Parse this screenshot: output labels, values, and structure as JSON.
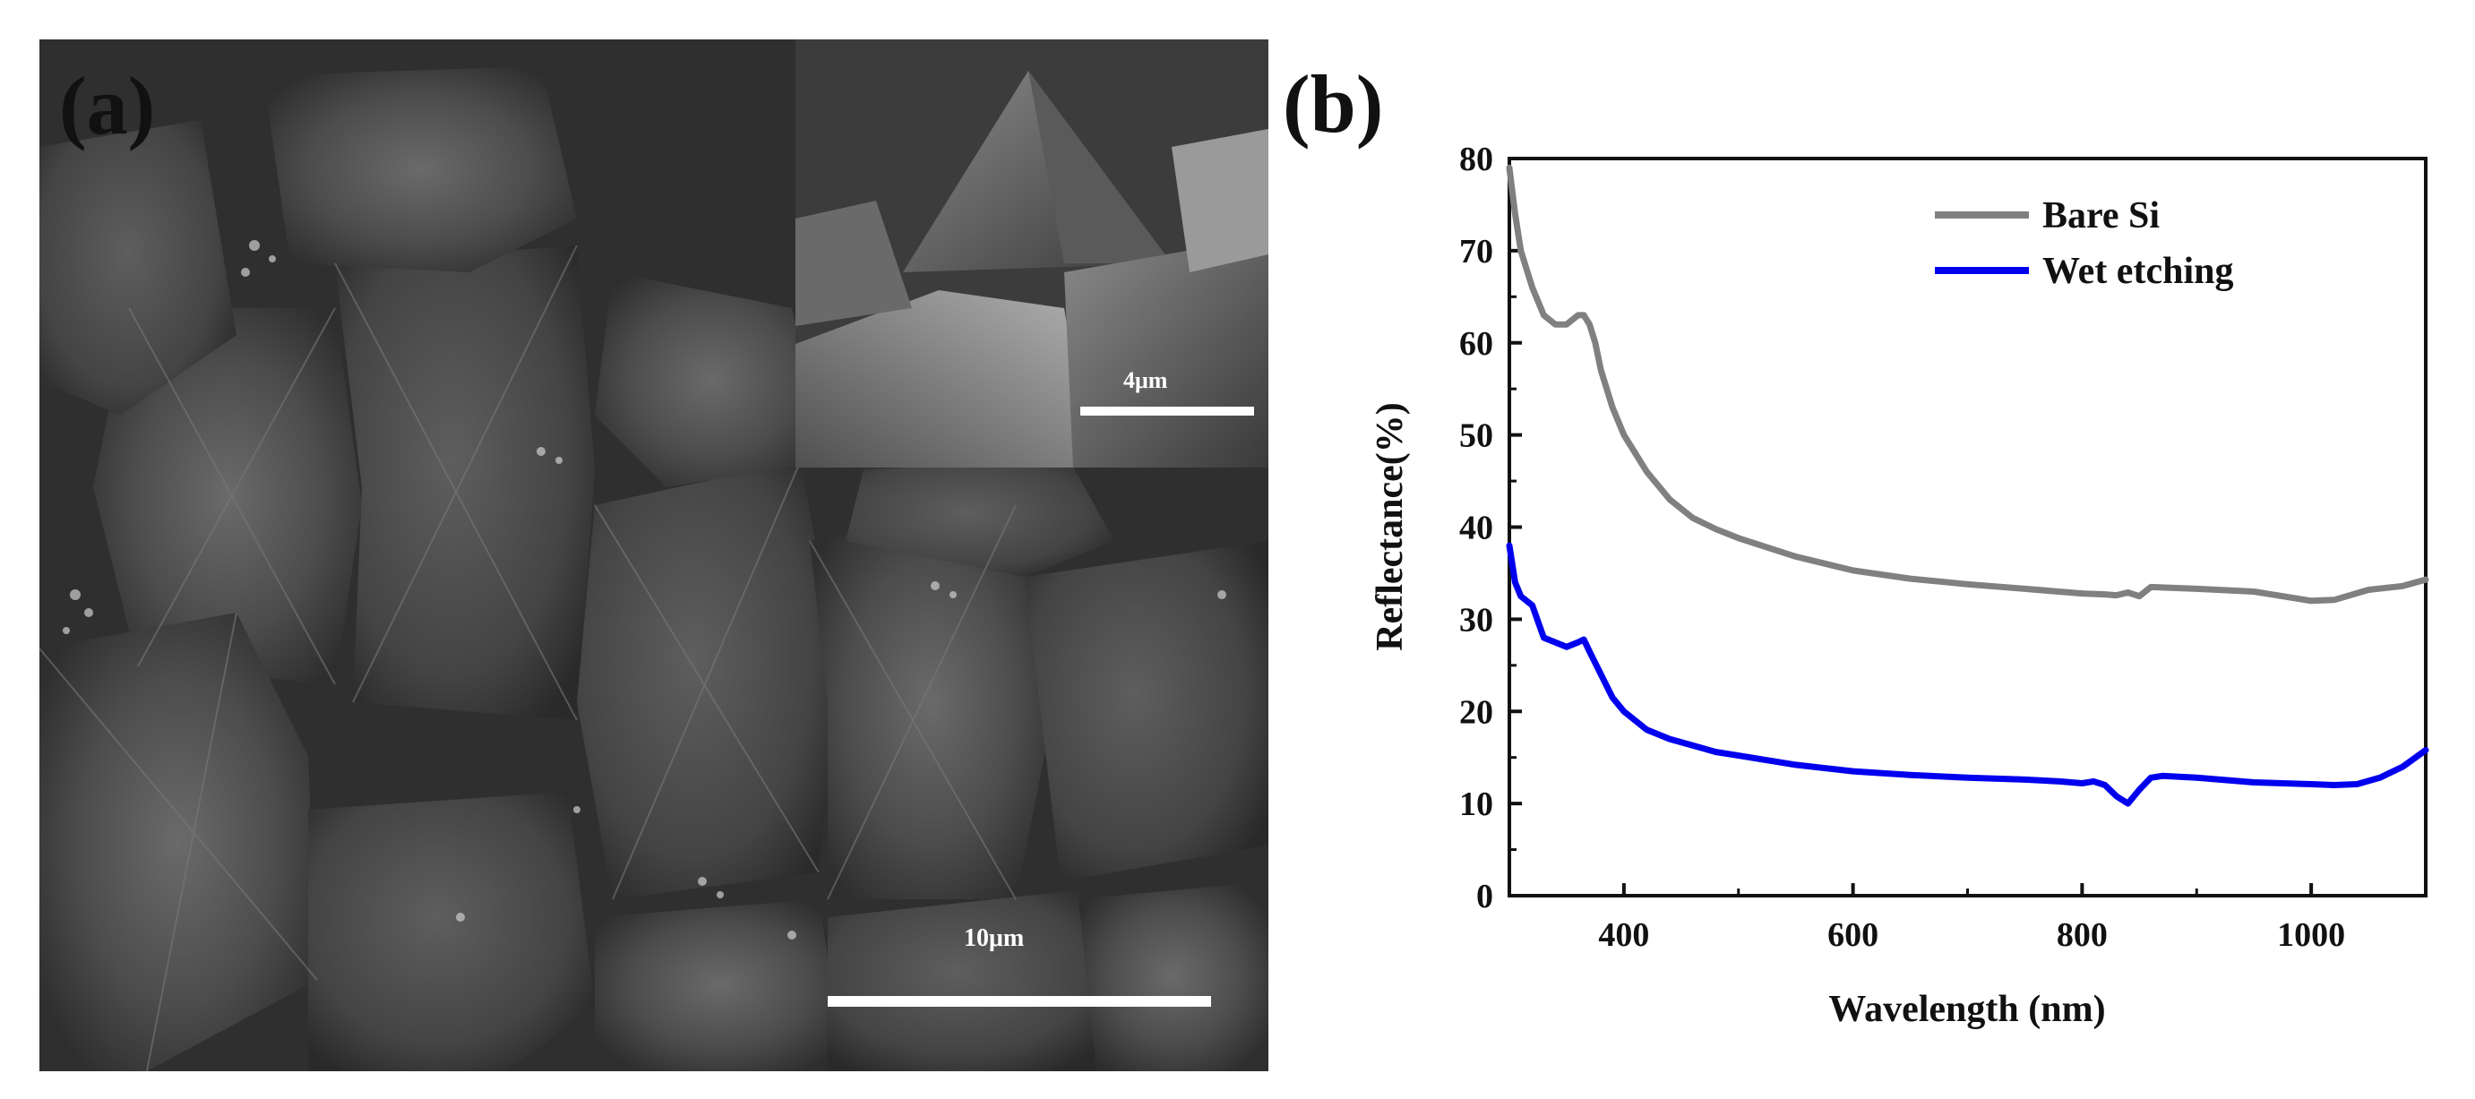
{
  "panel_a": {
    "label": "(a)",
    "main_scale_label": "10μm",
    "inset_scale_label": "4μm"
  },
  "panel_b": {
    "label": "(b)"
  },
  "chart_data": {
    "type": "line",
    "xlabel": "Wavelength (nm)",
    "ylabel": "Reflectance(%)",
    "xlim": [
      300,
      1100
    ],
    "ylim": [
      0,
      80
    ],
    "x_ticks": [
      400,
      600,
      800,
      1000
    ],
    "y_ticks": [
      0,
      10,
      20,
      30,
      40,
      50,
      60,
      70,
      80
    ],
    "grid": false,
    "legend_position": "top-right",
    "series": [
      {
        "name": "Bare Si",
        "color": "#808080",
        "x": [
          300,
          305,
          310,
          320,
          330,
          340,
          350,
          355,
          360,
          365,
          370,
          375,
          380,
          390,
          400,
          420,
          440,
          460,
          480,
          500,
          550,
          600,
          650,
          700,
          750,
          800,
          820,
          830,
          840,
          850,
          860,
          900,
          950,
          1000,
          1020,
          1050,
          1080,
          1100
        ],
        "y": [
          79,
          74,
          70,
          66,
          63,
          62,
          62,
          62.5,
          63,
          63,
          62,
          60,
          57,
          53,
          50,
          46,
          43,
          41,
          39.8,
          38.8,
          36.8,
          35.3,
          34.4,
          33.8,
          33.3,
          32.8,
          32.7,
          32.6,
          32.9,
          32.5,
          33.5,
          33.3,
          33,
          32,
          32.1,
          33.2,
          33.6,
          34.3
        ]
      },
      {
        "name": "Wet etching",
        "color": "#0000ee",
        "x": [
          300,
          305,
          310,
          320,
          330,
          340,
          350,
          360,
          365,
          370,
          380,
          390,
          400,
          420,
          440,
          460,
          480,
          500,
          550,
          600,
          650,
          700,
          750,
          780,
          800,
          810,
          820,
          830,
          840,
          850,
          860,
          870,
          900,
          950,
          1000,
          1020,
          1040,
          1060,
          1080,
          1100
        ],
        "y": [
          38,
          34,
          32.5,
          31.5,
          28,
          27.5,
          27,
          27.5,
          27.8,
          26.5,
          24,
          21.5,
          20,
          18,
          17,
          16.3,
          15.6,
          15.2,
          14.2,
          13.5,
          13.1,
          12.8,
          12.6,
          12.4,
          12.2,
          12.4,
          12,
          10.8,
          10,
          11.5,
          12.8,
          13,
          12.8,
          12.3,
          12.1,
          12,
          12.1,
          12.8,
          14,
          15.8
        ]
      }
    ]
  }
}
